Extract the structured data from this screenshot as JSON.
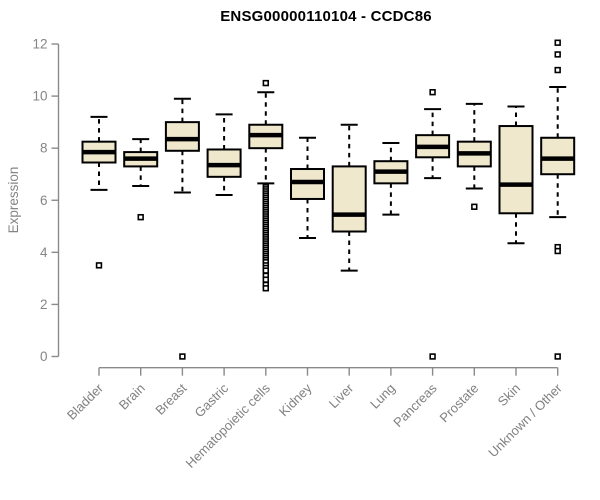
{
  "title": "ENSG00000110104 - CCDC86",
  "chart_data": {
    "type": "boxplot",
    "title": "ENSG00000110104 - CCDC86",
    "ylabel": "Expression",
    "xlabel": "",
    "ylim": [
      0,
      12
    ],
    "yticks": [
      0,
      2,
      4,
      6,
      8,
      10,
      12
    ],
    "grid": false,
    "legend": "none",
    "box_fill_color": "#EFE8CD",
    "box_stroke_color": "#000000",
    "median_color": "#000000",
    "whisker_color": "#000000",
    "outlier_color": "#000000",
    "axis_color": "#8a8a8a",
    "tick_label_color": "#808080",
    "title_color": "#000000",
    "categories": [
      "Bladder",
      "Brain",
      "Breast",
      "Gastric",
      "Hematopoietic cells",
      "Kidney",
      "Liver",
      "Lung",
      "Pancreas",
      "Prostate",
      "Skin",
      "Unknown / Other"
    ],
    "series": [
      {
        "category": "Bladder",
        "whisker_low": 6.4,
        "q1": 7.45,
        "median": 7.85,
        "q3": 8.25,
        "whisker_high": 9.2,
        "outliers": [
          3.5
        ]
      },
      {
        "category": "Brain",
        "whisker_low": 6.55,
        "q1": 7.3,
        "median": 7.6,
        "q3": 7.85,
        "whisker_high": 8.35,
        "outliers": [
          5.35
        ]
      },
      {
        "category": "Breast",
        "whisker_low": 6.3,
        "q1": 7.9,
        "median": 8.35,
        "q3": 9.0,
        "whisker_high": 9.9,
        "outliers": [
          0
        ]
      },
      {
        "category": "Gastric",
        "whisker_low": 6.2,
        "q1": 6.9,
        "median": 7.35,
        "q3": 7.95,
        "whisker_high": 9.3,
        "outliers": []
      },
      {
        "category": "Hematopoietic cells",
        "whisker_low": 6.65,
        "q1": 8.0,
        "median": 8.5,
        "q3": 8.9,
        "whisker_high": 10.15,
        "outliers": [
          10.5,
          6.5,
          6.42,
          6.34,
          6.26,
          6.18,
          6.1,
          6.02,
          5.94,
          5.86,
          5.78,
          5.7,
          5.62,
          5.54,
          5.46,
          5.38,
          5.3,
          5.22,
          5.14,
          5.06,
          4.98,
          4.9,
          4.82,
          4.74,
          4.66,
          4.58,
          4.5,
          4.42,
          4.34,
          4.26,
          4.18,
          4.1,
          4.02,
          3.94,
          3.86,
          3.78,
          3.7,
          3.62,
          3.5,
          3.4,
          3.3,
          3.1,
          2.95,
          2.75,
          2.62
        ]
      },
      {
        "category": "Kidney",
        "whisker_low": 4.55,
        "q1": 6.05,
        "median": 6.7,
        "q3": 7.2,
        "whisker_high": 8.4,
        "outliers": []
      },
      {
        "category": "Liver",
        "whisker_low": 3.3,
        "q1": 4.8,
        "median": 5.45,
        "q3": 7.3,
        "whisker_high": 8.9,
        "outliers": []
      },
      {
        "category": "Lung",
        "whisker_low": 5.45,
        "q1": 6.65,
        "median": 7.1,
        "q3": 7.5,
        "whisker_high": 8.2,
        "outliers": []
      },
      {
        "category": "Pancreas",
        "whisker_low": 6.85,
        "q1": 7.65,
        "median": 8.05,
        "q3": 8.5,
        "whisker_high": 9.5,
        "outliers": [
          10.15,
          0
        ]
      },
      {
        "category": "Prostate",
        "whisker_low": 6.45,
        "q1": 7.3,
        "median": 7.8,
        "q3": 8.25,
        "whisker_high": 9.7,
        "outliers": [
          5.75
        ]
      },
      {
        "category": "Skin",
        "whisker_low": 4.35,
        "q1": 5.5,
        "median": 6.6,
        "q3": 8.85,
        "whisker_high": 9.6,
        "outliers": []
      },
      {
        "category": "Unknown / Other",
        "whisker_low": 5.35,
        "q1": 7.0,
        "median": 7.6,
        "q3": 8.4,
        "whisker_high": 10.35,
        "outliers": [
          12.05,
          11.6,
          11.0,
          4.2,
          4.05,
          0
        ]
      }
    ]
  }
}
